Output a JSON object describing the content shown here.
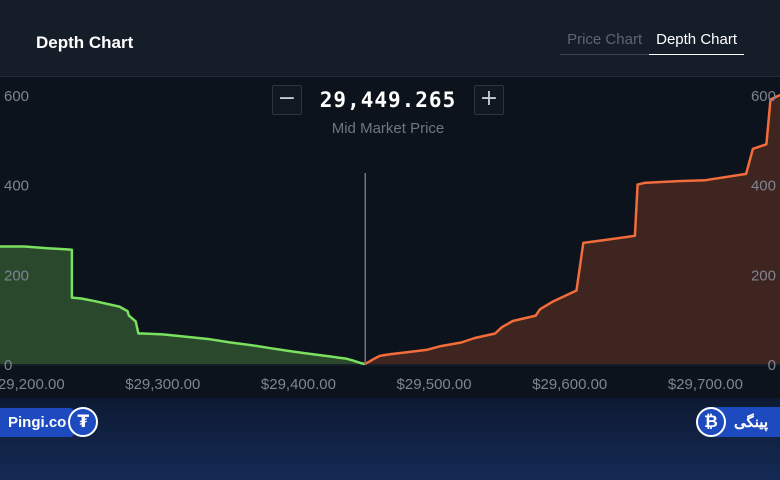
{
  "header": {
    "title": "Depth Chart",
    "tabs": [
      {
        "label": "Price Chart",
        "active": false
      },
      {
        "label": "Depth Chart",
        "active": true
      }
    ]
  },
  "mid_market": {
    "value": "29,449.265",
    "label": "Mid Market Price",
    "minus_icon": "minus-icon",
    "plus_icon": "plus-icon"
  },
  "chart_data": {
    "type": "area",
    "x_tick_labels": [
      "$29,200.00",
      "$29,300.00",
      "$29,400.00",
      "$29,500.00",
      "$29,600.00",
      "$29,700.00"
    ],
    "x_ticks": [
      29200,
      29300,
      29400,
      29500,
      29600,
      29700
    ],
    "y_tick_labels_left": [
      "600",
      "400",
      "200",
      "0"
    ],
    "y_tick_labels_right": [
      "600",
      "400",
      "200",
      "0"
    ],
    "y_ticks": [
      600,
      400,
      200,
      0
    ],
    "xlim": [
      29180,
      29755
    ],
    "ylim": [
      0,
      620
    ],
    "mid_price": 29449.265,
    "series": [
      {
        "side": "bids",
        "color": "#7be05f",
        "fill": "#29482c",
        "x": [
          29180,
          29198,
          29215,
          29228,
          29233,
          29233,
          29240,
          29250,
          29268,
          29274,
          29275,
          29280,
          29282,
          29285,
          29300,
          29320,
          29335,
          29350,
          29360,
          29370,
          29380,
          29395,
          29405,
          29415,
          29425,
          29430,
          29435,
          29440,
          29443,
          29446,
          29449
        ],
        "y": [
          262,
          262,
          258,
          256,
          255,
          148,
          146,
          140,
          128,
          118,
          108,
          95,
          68,
          68,
          66,
          60,
          55,
          48,
          44,
          40,
          35,
          28,
          24,
          20,
          16,
          14,
          12,
          8,
          5,
          2,
          0
        ]
      },
      {
        "side": "asks",
        "color": "#f36c3b",
        "fill": "#3e251f",
        "x": [
          29449,
          29452,
          29456,
          29460,
          29468,
          29480,
          29495,
          29505,
          29520,
          29530,
          29545,
          29550,
          29558,
          29575,
          29578,
          29588,
          29605,
          29610,
          29630,
          29648,
          29650,
          29655,
          29680,
          29700,
          29730,
          29735,
          29745,
          29748,
          29755
        ],
        "y": [
          0,
          5,
          12,
          18,
          22,
          26,
          32,
          40,
          48,
          58,
          68,
          82,
          96,
          108,
          122,
          140,
          164,
          270,
          278,
          286,
          400,
          404,
          408,
          410,
          424,
          480,
          490,
          590,
          600
        ]
      }
    ]
  },
  "footer": {
    "left_brand": "Pingi.co",
    "left_icon": "tether-icon",
    "left_icon_glyph": "₮",
    "right_brand": "پینگی",
    "right_icon": "bitcoin-icon",
    "right_icon_glyph": "₿"
  }
}
